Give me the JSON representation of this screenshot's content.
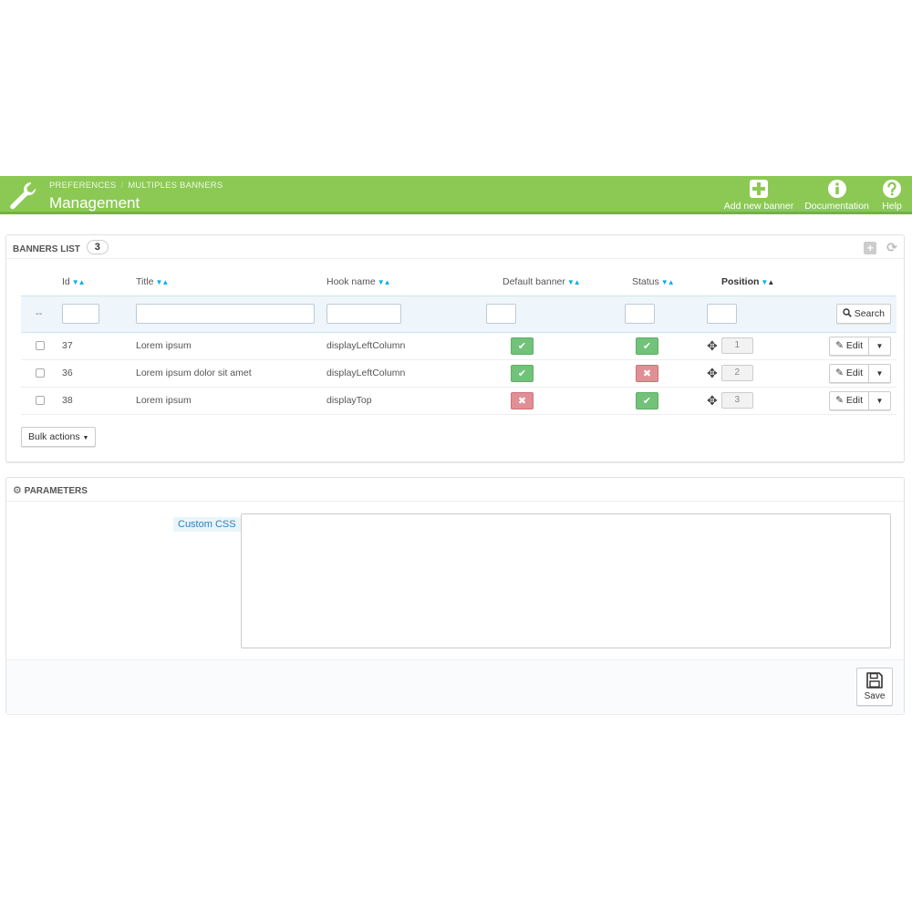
{
  "header": {
    "breadcrumb": [
      "PREFERENCES",
      "MULTIPLES BANNERS"
    ],
    "breadcrumb_sep": "/",
    "title": "Management",
    "buttons": {
      "add": "Add new banner",
      "doc": "Documentation",
      "help": "Help"
    },
    "colors": {
      "bar": "#8bc954",
      "bar_border": "#76b13e"
    }
  },
  "banners": {
    "panel_title": "BANNERS LIST",
    "count": "3",
    "columns": {
      "id": "Id",
      "title": "Title",
      "hook": "Hook name",
      "default": "Default banner",
      "status": "Status",
      "position": "Position"
    },
    "filter_placeholder": "--",
    "search_label": "Search",
    "edit_label": "Edit",
    "bulk_label": "Bulk actions",
    "rows": [
      {
        "id": "37",
        "title": "Lorem ipsum",
        "hook": "displayLeftColumn",
        "default": true,
        "status": true,
        "position": "1"
      },
      {
        "id": "36",
        "title": "Lorem ipsum dolor sit amet",
        "hook": "displayLeftColumn",
        "default": true,
        "status": false,
        "position": "2"
      },
      {
        "id": "38",
        "title": "Lorem ipsum",
        "hook": "displayTop",
        "default": false,
        "status": true,
        "position": "3"
      }
    ]
  },
  "parameters": {
    "panel_title": "PARAMETERS",
    "custom_css_label": "Custom CSS",
    "custom_css_value": "",
    "save_label": "Save"
  }
}
